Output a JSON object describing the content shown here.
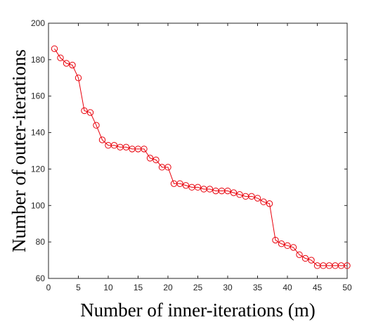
{
  "chart_data": {
    "type": "line",
    "xlabel": "Number of inner-iterations (m)",
    "ylabel": "Number of outer-iterations",
    "xlim": [
      0,
      50
    ],
    "ylim": [
      60,
      200
    ],
    "xticks": [
      0,
      5,
      10,
      15,
      20,
      25,
      30,
      35,
      40,
      45,
      50
    ],
    "yticks": [
      60,
      80,
      100,
      120,
      140,
      160,
      180,
      200
    ],
    "grid": false,
    "marker": "circle",
    "color": "#e8000b",
    "x": [
      1,
      2,
      3,
      4,
      5,
      6,
      7,
      8,
      9,
      10,
      11,
      12,
      13,
      14,
      15,
      16,
      17,
      18,
      19,
      20,
      21,
      22,
      23,
      24,
      25,
      26,
      27,
      28,
      29,
      30,
      31,
      32,
      33,
      34,
      35,
      36,
      37,
      38,
      39,
      40,
      41,
      42,
      43,
      44,
      45,
      46,
      47,
      48,
      49,
      50
    ],
    "y": [
      186,
      181,
      178,
      177,
      170,
      152,
      151,
      144,
      136,
      133,
      133,
      132,
      132,
      131,
      131,
      131,
      126,
      125,
      121,
      121,
      112,
      112,
      111,
      110,
      110,
      109,
      109,
      108,
      108,
      108,
      107,
      106,
      105,
      105,
      104,
      102,
      101,
      81,
      79,
      78,
      77,
      73,
      71,
      70,
      67,
      67,
      67,
      67,
      67,
      67
    ]
  }
}
